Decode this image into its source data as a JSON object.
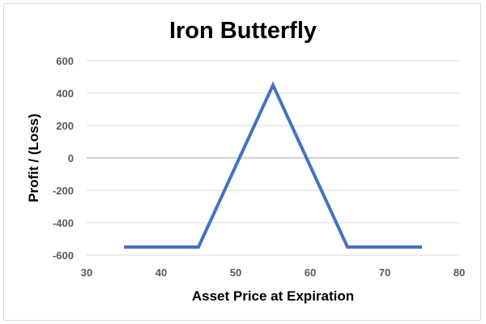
{
  "chart_data": {
    "type": "line",
    "title": "Iron Butterfly",
    "xlabel": "Asset Price at Expiration",
    "ylabel": "Profit / (Loss)",
    "xlim": [
      30,
      80
    ],
    "ylim": [
      -600,
      600
    ],
    "xticks": [
      30,
      40,
      50,
      60,
      70,
      80
    ],
    "yticks": [
      600,
      400,
      200,
      0,
      -200,
      -400,
      -600
    ],
    "grid": true,
    "legend": "none",
    "series": [
      {
        "x": [
          35,
          45,
          55,
          65,
          75
        ],
        "y": [
          -550,
          -550,
          450,
          -550,
          -550
        ],
        "color": "#4472c4"
      }
    ],
    "colors": {
      "line": "#4472c4",
      "grid": "#d9d9d9",
      "zero_line": "#a6a6a6"
    }
  }
}
